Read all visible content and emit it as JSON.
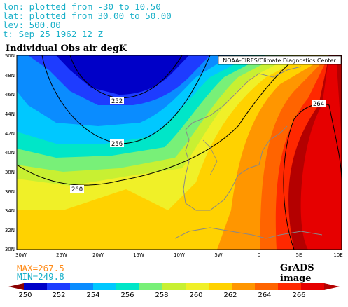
{
  "header": {
    "lon_line": "lon: plotted from -30 to 10.50",
    "lat_line": "lat: plotted from 30.00 to 50.00",
    "lev_line": "lev: 500.00",
    "time_line": "t: Sep 25 1962 12 Z"
  },
  "title": "Individual Obs air degK",
  "credit": "NOAA-CIRES/Climate Diagnostics Center",
  "map": {
    "lat_labels": [
      "50N",
      "48N",
      "46N",
      "44N",
      "42N",
      "40N",
      "38N",
      "36N",
      "34N",
      "32N",
      "30N"
    ],
    "lon_labels": [
      "30W",
      "25W",
      "20W",
      "15W",
      "10W",
      "5W",
      "0",
      "5E",
      "10E"
    ],
    "contour_labels": [
      "252",
      "256",
      "260",
      "264"
    ]
  },
  "stats": {
    "max": "MAX=267.5",
    "min": "MIN=249.8"
  },
  "product": "GrADS image",
  "colorbar": {
    "labels": [
      "250",
      "252",
      "254",
      "256",
      "258",
      "260",
      "262",
      "264",
      "266"
    ],
    "colors": [
      "#8a0000",
      "#0000c8",
      "#1e3cff",
      "#0a8cff",
      "#00c8ff",
      "#00e6c8",
      "#78f078",
      "#c8f032",
      "#f0f028",
      "#ffd200",
      "#ff9600",
      "#ff6400",
      "#ff2800",
      "#e60000",
      "#b40000"
    ]
  },
  "palette": {
    "bg_blue_dark": "#0000c8",
    "blue": "#1e3cff",
    "mid_blue": "#0a8cff",
    "cyan": "#00c8ff",
    "teal": "#00e6c8",
    "lt_green": "#78f078",
    "yel_green": "#c8f032",
    "yellow": "#f0f028",
    "gold": "#ffd200",
    "orange": "#ff9600",
    "dk_orange": "#ff6400",
    "red": "#ff2800",
    "dk_red": "#e60000",
    "maroon": "#b40000"
  }
}
